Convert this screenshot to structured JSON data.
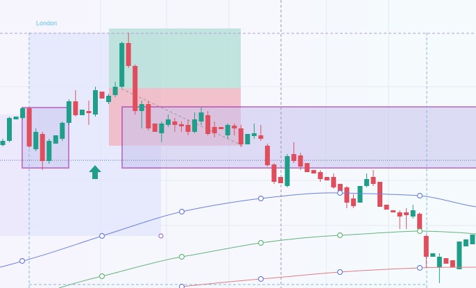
{
  "chart_data": {
    "type": "candlestick",
    "label": "London",
    "up_color": "#1f9e89",
    "down_color": "#e04e5e",
    "ylim": [
      0,
      415
    ],
    "open": [
      206,
      212,
      243,
      245,
      259,
      200,
      222,
      183,
      208,
      215,
      238,
      269,
      249,
      255,
      250,
      283,
      268,
      278,
      290,
      353,
      320,
      255,
      265,
      237,
      223,
      235,
      240,
      236,
      235,
      225,
      240,
      249,
      232,
      232,
      220,
      234,
      230,
      207,
      219,
      220,
      205,
      178,
      160,
      147,
      193,
      191,
      180,
      170,
      167,
      160,
      160,
      150,
      145,
      129,
      123,
      147,
      160,
      153,
      120,
      112,
      109,
      109,
      103,
      107,
      75,
      45,
      30,
      43,
      40,
      27,
      60,
      63
    ],
    "high": [
      215,
      247,
      247,
      261,
      261,
      230,
      225,
      215,
      220,
      240,
      272,
      285,
      257,
      270,
      290,
      283,
      280,
      297,
      355,
      368,
      322,
      270,
      270,
      237,
      240,
      250,
      245,
      240,
      243,
      253,
      260,
      255,
      240,
      232,
      237,
      237,
      235,
      222,
      237,
      235,
      208,
      180,
      160,
      193,
      210,
      195,
      180,
      170,
      170,
      160,
      165,
      150,
      147,
      135,
      147,
      165,
      170,
      153,
      120,
      112,
      112,
      115,
      120,
      109,
      77,
      50,
      50,
      43,
      40,
      67,
      70,
      77
    ],
    "low": [
      204,
      210,
      243,
      243,
      202,
      197,
      170,
      179,
      208,
      212,
      235,
      247,
      249,
      235,
      247,
      273,
      265,
      275,
      288,
      317,
      250,
      230,
      227,
      225,
      210,
      232,
      225,
      225,
      220,
      223,
      235,
      220,
      217,
      229,
      215,
      220,
      203,
      207,
      215,
      212,
      175,
      150,
      151,
      145,
      180,
      170,
      167,
      165,
      153,
      155,
      143,
      140,
      115,
      115,
      123,
      145,
      147,
      117,
      113,
      109,
      85,
      85,
      100,
      83,
      30,
      45,
      7,
      35,
      30,
      27,
      60,
      63
    ],
    "close": [
      212,
      245,
      247,
      259,
      204,
      225,
      183,
      212,
      220,
      238,
      269,
      249,
      257,
      252,
      285,
      273,
      277,
      290,
      353,
      320,
      255,
      265,
      230,
      225,
      237,
      243,
      235,
      233,
      225,
      243,
      253,
      222,
      223,
      229,
      235,
      230,
      207,
      222,
      223,
      215,
      177,
      153,
      151,
      190,
      183,
      175,
      167,
      165,
      157,
      155,
      145,
      140,
      123,
      118,
      147,
      157,
      150,
      117,
      113,
      109,
      103,
      105,
      112,
      85,
      45,
      50,
      45,
      35,
      30,
      67,
      70,
      77
    ]
  }
}
